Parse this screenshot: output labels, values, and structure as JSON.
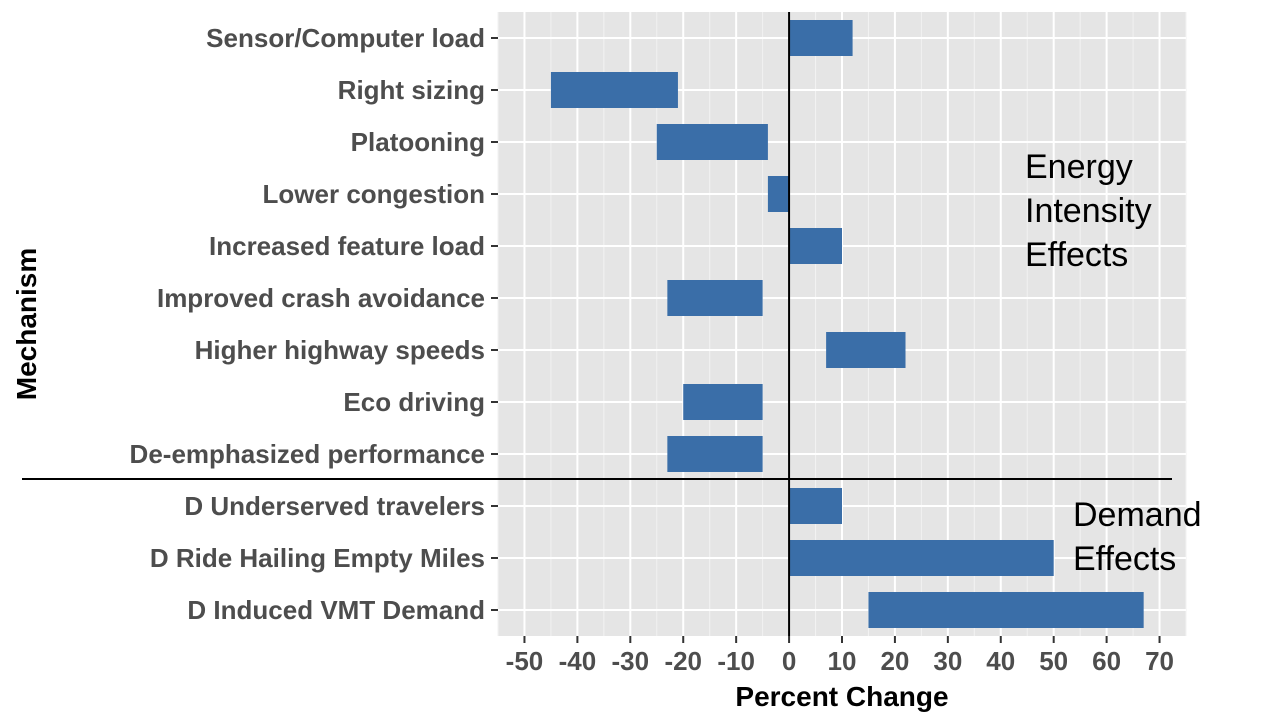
{
  "chart_data": {
    "type": "bar",
    "orientation": "horizontal",
    "bar_kind": "range",
    "xlabel": "Percent Change",
    "ylabel": "Mechanism",
    "xlim": [
      -55,
      75
    ],
    "xticks": [
      -50,
      -40,
      -30,
      -20,
      -10,
      0,
      10,
      20,
      30,
      40,
      50,
      60,
      70
    ],
    "grid": true,
    "bar_color": "#3a6ea8",
    "panel_color": "#e5e5e5",
    "categories": [
      "Sensor/Computer load",
      "Right sizing",
      "Platooning",
      "Lower congestion",
      "Increased feature load",
      "Improved crash avoidance",
      "Higher highway speeds",
      "Eco driving",
      "De-emphasized performance",
      "D Underserved travelers",
      "D Ride Hailing Empty Miles",
      "D Induced VMT Demand"
    ],
    "ranges": [
      [
        0,
        12
      ],
      [
        -45,
        -21
      ],
      [
        -25,
        -4
      ],
      [
        -4,
        0
      ],
      [
        0,
        10
      ],
      [
        -23,
        -5
      ],
      [
        7,
        22
      ],
      [
        -20,
        -5
      ],
      [
        -23,
        -5
      ],
      [
        0,
        10
      ],
      [
        0,
        50
      ],
      [
        15,
        67
      ]
    ],
    "annotations": [
      {
        "lines": [
          "Energy",
          "Intensity",
          "Effects"
        ]
      },
      {
        "lines": [
          "Demand",
          "Effects"
        ]
      }
    ]
  }
}
